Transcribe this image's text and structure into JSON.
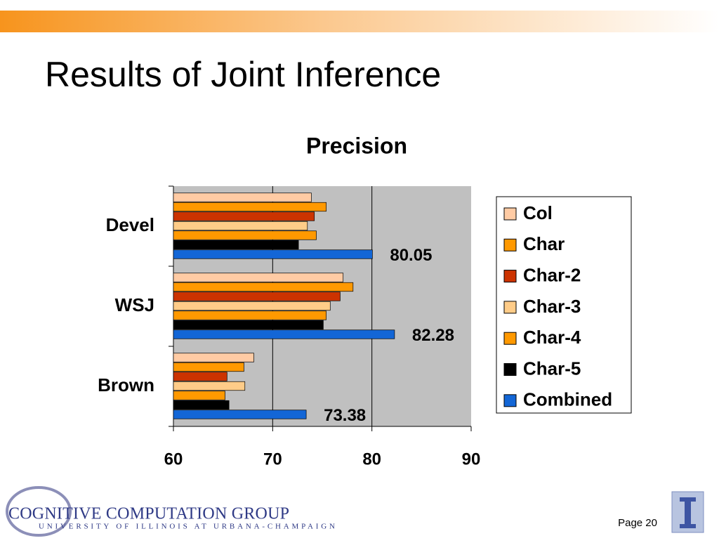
{
  "slide": {
    "title": "Results of Joint Inference",
    "logo_title": "COGNITIVE COMPUTATION GROUP",
    "logo_subtitle": "UNIVERSITY OF ILLINOIS AT URBANA-CHAMPAIGN",
    "page": "Page 20"
  },
  "chart_data": {
    "type": "hbar",
    "title": "Precision",
    "categories": [
      "Devel",
      "WSJ",
      "Brown"
    ],
    "series": [
      {
        "name": "Col",
        "color": "#FFCBA4",
        "values": [
          73.9,
          77.1,
          68.1
        ]
      },
      {
        "name": "Char",
        "color": "#FF9900",
        "values": [
          75.4,
          78.1,
          67.1
        ]
      },
      {
        "name": "Char-2",
        "color": "#CC3300",
        "values": [
          74.2,
          76.8,
          65.4
        ]
      },
      {
        "name": "Char-3",
        "color": "#FFCC88",
        "values": [
          73.5,
          75.8,
          67.2
        ]
      },
      {
        "name": "Char-4",
        "color": "#FF9900",
        "values": [
          74.4,
          75.4,
          65.2
        ]
      },
      {
        "name": "Char-5",
        "color": "#000000",
        "values": [
          72.6,
          75.1,
          65.6
        ]
      },
      {
        "name": "Combined",
        "color": "#1366D6",
        "values": [
          80.05,
          82.28,
          73.38
        ],
        "labeled": true
      }
    ],
    "xlim": [
      60,
      90
    ],
    "xticks": [
      60,
      70,
      80,
      90
    ],
    "grid": true,
    "legend": "right"
  }
}
